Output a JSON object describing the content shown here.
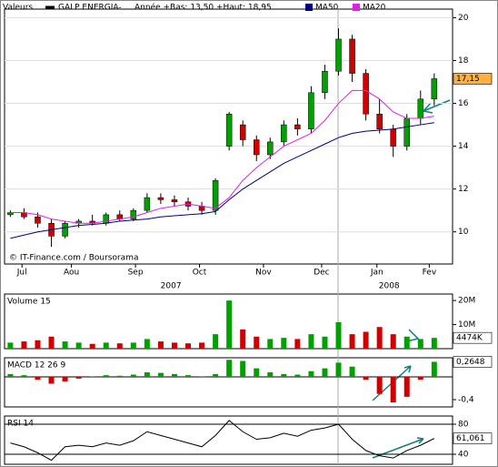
{
  "chart_data": [
    {
      "type": "candlestick",
      "header": [
        "Valeurs",
        "GALP ENERGIA-",
        "Année +Bas: 13,50 +Haut: 18,95"
      ],
      "credit": "© IT-Finance.com / Boursorama",
      "x": [
        -0.2,
        0.035,
        0.27,
        0.505,
        0.74,
        0.975,
        1.21,
        1.445,
        1.68,
        1.915,
        2.15,
        2.385,
        2.62,
        2.855,
        3.09,
        3.325,
        3.56,
        3.795,
        4.03,
        4.265,
        4.5,
        4.735,
        4.97,
        5.205,
        5.44,
        5.675,
        5.91,
        6.145,
        6.38,
        6.615,
        6.85,
        7.085
      ],
      "open": [
        10.8,
        10.9,
        10.7,
        10.4,
        9.8,
        10.4,
        10.5,
        10.4,
        10.8,
        10.6,
        11.0,
        11.6,
        11.5,
        11.4,
        11.2,
        11.0,
        14.0,
        15.0,
        14.3,
        13.6,
        14.2,
        15.0,
        14.8,
        16.5,
        17.5,
        19.0,
        17.4,
        15.5,
        14.8,
        14.0,
        15.3,
        16.2
      ],
      "high": [
        11.0,
        11.1,
        10.9,
        10.6,
        10.5,
        10.6,
        10.8,
        10.9,
        11.0,
        11.1,
        11.8,
        11.8,
        11.7,
        11.6,
        11.4,
        12.5,
        15.6,
        15.2,
        14.5,
        14.4,
        15.2,
        15.3,
        16.8,
        17.8,
        19.5,
        19.2,
        17.6,
        16.2,
        15.0,
        15.5,
        16.6,
        17.4
      ],
      "low": [
        10.7,
        10.6,
        10.2,
        9.3,
        9.7,
        10.2,
        10.3,
        10.3,
        10.5,
        10.5,
        10.9,
        11.3,
        11.2,
        11.0,
        10.8,
        10.8,
        13.8,
        14.0,
        13.3,
        13.4,
        14.0,
        14.5,
        14.6,
        16.2,
        17.3,
        17.0,
        15.2,
        14.6,
        13.5,
        13.8,
        15.0,
        15.9
      ],
      "close": [
        10.9,
        10.7,
        10.4,
        9.8,
        10.4,
        10.5,
        10.4,
        10.8,
        10.6,
        11.0,
        11.6,
        11.5,
        11.4,
        11.2,
        11.0,
        12.4,
        15.5,
        14.3,
        13.6,
        14.2,
        15.0,
        14.8,
        16.5,
        17.5,
        19.0,
        17.4,
        15.5,
        14.8,
        14.0,
        15.3,
        16.2,
        17.15
      ],
      "up_color": "#00a000",
      "down_color": "#d00000",
      "series": [
        {
          "name": "MA50",
          "color": "#000080",
          "values": [
            9.7,
            9.85,
            10.0,
            10.1,
            10.2,
            10.3,
            10.35,
            10.4,
            10.5,
            10.55,
            10.6,
            10.7,
            10.75,
            10.8,
            10.85,
            10.95,
            11.5,
            12.0,
            12.4,
            12.8,
            13.2,
            13.5,
            13.8,
            14.1,
            14.4,
            14.6,
            14.7,
            14.75,
            14.8,
            14.9,
            15.0,
            15.1
          ]
        },
        {
          "name": "MA20",
          "color": "#e020e0",
          "values": [
            10.9,
            10.9,
            10.8,
            10.6,
            10.5,
            10.4,
            10.4,
            10.5,
            10.6,
            10.7,
            10.9,
            11.1,
            11.2,
            11.3,
            11.2,
            11.1,
            11.6,
            12.4,
            13.0,
            13.5,
            14.0,
            14.3,
            14.6,
            15.2,
            16.0,
            16.6,
            16.6,
            16.2,
            15.6,
            15.3,
            15.3,
            15.4
          ]
        }
      ],
      "xlim": [
        -0.3,
        7.4
      ],
      "xticks": [
        {
          "value": 0,
          "label": "Jul"
        },
        {
          "value": 0.85,
          "label": "Aou"
        },
        {
          "value": 1.95,
          "label": "Sep"
        },
        {
          "value": 3.05,
          "label": "Oct"
        },
        {
          "value": 4.15,
          "label": "Nov"
        },
        {
          "value": 5.15,
          "label": "Dec"
        },
        {
          "value": 6.1,
          "label": "Jan"
        },
        {
          "value": 7.0,
          "label": "Fev"
        }
      ],
      "year_ticks": [
        {
          "value": 2.56,
          "label": "2007"
        },
        {
          "value": 6.31,
          "label": "2008"
        }
      ],
      "ylim": [
        8.5,
        20.4
      ],
      "yticks": [
        10,
        12,
        14,
        16,
        18,
        20
      ],
      "grid": true,
      "current_label": "17,15"
    },
    {
      "type": "bar",
      "title": "Volume 15",
      "values": [
        2500000,
        3000000,
        3500000,
        5000000,
        3000000,
        2500000,
        2000000,
        2500000,
        2200000,
        2500000,
        4000000,
        3000000,
        2500000,
        2200000,
        2500000,
        6000000,
        20000000,
        8000000,
        5000000,
        4000000,
        4500000,
        4000000,
        6000000,
        5000000,
        11000000,
        6000000,
        7000000,
        9000000,
        6000000,
        5000000,
        4000000,
        4474000
      ],
      "ylim": [
        0,
        22700000
      ],
      "yticks": [
        {
          "value": 10000000,
          "label": "10M"
        },
        {
          "value": 20000000,
          "label": "20M"
        }
      ],
      "current_label": "4474K"
    },
    {
      "type": "bar",
      "title": "MACD 12 26 9",
      "values": [
        0.05,
        0.03,
        -0.05,
        -0.12,
        -0.08,
        -0.03,
        0.01,
        0.03,
        0.02,
        0.04,
        0.08,
        0.07,
        0.05,
        0.03,
        0.01,
        0.05,
        0.3,
        0.28,
        0.15,
        0.08,
        0.05,
        0.04,
        0.1,
        0.15,
        0.25,
        0.18,
        -0.05,
        -0.3,
        -0.45,
        -0.35,
        -0.05,
        0.2648
      ],
      "ylim": [
        -0.528,
        0.336
      ],
      "yticks": [
        {
          "value": -0.4,
          "label": "-0,4"
        }
      ],
      "current_label": "0,2648"
    },
    {
      "type": "line",
      "title": "RSI 14",
      "values": [
        55,
        50,
        42,
        32,
        50,
        52,
        50,
        55,
        52,
        58,
        70,
        65,
        60,
        55,
        50,
        65,
        85,
        70,
        60,
        62,
        68,
        64,
        72,
        75,
        80,
        60,
        45,
        38,
        35,
        45,
        52,
        61.061
      ],
      "ylim": [
        26.7,
        90.9
      ],
      "yticks": [
        40,
        80
      ],
      "current_label": "61,061"
    }
  ]
}
